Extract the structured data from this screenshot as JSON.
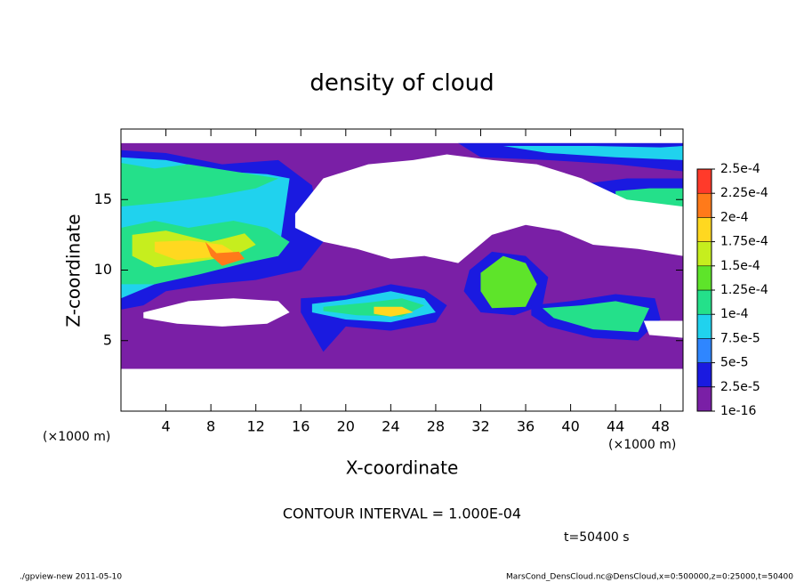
{
  "chart_data": {
    "type": "contour",
    "title": "density of cloud",
    "x_label": "X-coordinate",
    "y_label": "Z-coordinate",
    "x_unit": "(×1000 m)",
    "x_unit_right": "(×1000 m)",
    "subtitle": "CONTOUR INTERVAL = 1.000E-04",
    "time_label": "t=50400 s",
    "footer_left": "./gpview-new  2011-05-10",
    "footer_right": "MarsCond_DensCloud.nc@DensCloud,x=0:500000,z=0:25000,t=50400",
    "xlim": [
      0,
      50
    ],
    "ylim": [
      0,
      20
    ],
    "xticks": [
      4,
      8,
      12,
      16,
      20,
      24,
      28,
      32,
      36,
      40,
      44,
      48
    ],
    "yticks": [
      5,
      10,
      15
    ],
    "colorbar": {
      "levels": [
        {
          "value": 1e-16,
          "label": "1e-16"
        },
        {
          "value": 2.5e-05,
          "label": "2.5e-5"
        },
        {
          "value": 5e-05,
          "label": "5e-5"
        },
        {
          "value": 7.5e-05,
          "label": "7.5e-5"
        },
        {
          "value": 0.0001,
          "label": "1e-4"
        },
        {
          "value": 0.000125,
          "label": "1.25e-4"
        },
        {
          "value": 0.00015,
          "label": "1.5e-4"
        },
        {
          "value": 0.000175,
          "label": "1.75e-4"
        },
        {
          "value": 0.0002,
          "label": "2e-4"
        },
        {
          "value": 0.000225,
          "label": "2.25e-4"
        },
        {
          "value": 0.00025,
          "label": "2.5e-4"
        }
      ],
      "colors": [
        "#7a1fa6",
        "#1a1ae0",
        "#2f86ff",
        "#20d2ee",
        "#24e08a",
        "#5ee42a",
        "#c6ee1e",
        "#ffd820",
        "#ff7a1a",
        "#ff3a2a"
      ]
    },
    "holes": [
      {
        "x": [
          15.5,
          18,
          22,
          26,
          29,
          33,
          37,
          41,
          45,
          50,
          50,
          46,
          42,
          39,
          36,
          33,
          30,
          27,
          24,
          21,
          18,
          15.5
        ],
        "y": [
          14,
          16.5,
          17.5,
          17.8,
          18.2,
          17.8,
          17.5,
          16.5,
          15,
          14.5,
          11,
          11.5,
          11.8,
          12.8,
          13.2,
          12.5,
          10.5,
          11,
          10.8,
          11.5,
          12,
          13
        ]
      },
      {
        "x": [
          2,
          6,
          10,
          14,
          15,
          13,
          9,
          5,
          2
        ],
        "y": [
          7,
          7.8,
          8,
          7.8,
          7,
          6.2,
          6,
          6.2,
          6.6
        ]
      },
      {
        "x": [
          46.5,
          50,
          50,
          47
        ],
        "y": [
          6.4,
          6.4,
          5.2,
          5.4
        ]
      }
    ],
    "regions": [
      {
        "level": 1e-16,
        "x": [
          0,
          50,
          50,
          0
        ],
        "y": [
          3,
          3,
          19,
          19
        ]
      },
      {
        "level": 2.5e-05,
        "x": [
          0,
          4,
          9,
          14,
          17,
          18,
          16,
          12,
          8,
          4,
          2,
          0
        ],
        "y": [
          18.5,
          18.3,
          17.5,
          17.8,
          16,
          12,
          10,
          9.3,
          9,
          8.5,
          7.5,
          7.2
        ]
      },
      {
        "level": 7.5e-05,
        "x": [
          0,
          4,
          9,
          13,
          15,
          14,
          10,
          6,
          3,
          0
        ],
        "y": [
          18,
          17.8,
          17,
          16.8,
          16.5,
          11,
          10.5,
          9.8,
          9,
          8
        ]
      },
      {
        "level": 0.0001,
        "x": [
          0,
          3,
          6,
          10,
          14,
          12,
          8,
          4,
          0
        ],
        "y": [
          17.6,
          17.2,
          17.5,
          17,
          16.5,
          15.8,
          15.2,
          14.8,
          14.5
        ]
      },
      {
        "level": 0.0001,
        "x": [
          0,
          3,
          6,
          10,
          13,
          15,
          14,
          11,
          7,
          3,
          0
        ],
        "y": [
          13,
          13.5,
          13,
          13.5,
          13,
          12,
          11,
          10.5,
          9.7,
          9,
          9
        ]
      },
      {
        "level": 0.00015,
        "x": [
          1,
          4,
          8,
          11,
          12,
          10,
          6,
          3,
          1
        ],
        "y": [
          12.5,
          12.8,
          12,
          12.6,
          11.8,
          11,
          10.5,
          10.2,
          11
        ]
      },
      {
        "level": 0.000175,
        "x": [
          3,
          6,
          9,
          10,
          8,
          5,
          3
        ],
        "y": [
          12,
          12.1,
          11.8,
          11.3,
          10.9,
          10.7,
          11.3
        ]
      },
      {
        "level": 0.0002,
        "x": [
          7.5,
          8.5,
          10.5,
          11,
          9,
          8
        ],
        "y": [
          12,
          11.2,
          11.3,
          10.8,
          10.3,
          11
        ]
      },
      {
        "level": 2.5e-05,
        "x": [
          16,
          20,
          24,
          27,
          29,
          28,
          24,
          20,
          18,
          16
        ],
        "y": [
          8,
          8.2,
          9,
          8.6,
          7.5,
          6.3,
          5.7,
          6,
          4.2,
          7
        ]
      },
      {
        "level": 7.5e-05,
        "x": [
          17,
          20,
          24,
          27,
          28,
          24,
          20,
          17
        ],
        "y": [
          7.6,
          7.9,
          8.5,
          8,
          7,
          6.3,
          6.5,
          7
        ]
      },
      {
        "level": 0.0001,
        "x": [
          18,
          22,
          25,
          27,
          25,
          21,
          18
        ],
        "y": [
          7.4,
          7.7,
          8,
          7.5,
          6.7,
          6.8,
          7.1
        ]
      },
      {
        "level": 0.000175,
        "x": [
          22.5,
          25,
          26,
          24,
          22.5
        ],
        "y": [
          7.4,
          7.4,
          7,
          6.7,
          6.9
        ]
      },
      {
        "level": 2.5e-05,
        "x": [
          31,
          33,
          36,
          38,
          37.5,
          35,
          32,
          30.5
        ],
        "y": [
          10,
          11.3,
          11,
          9.5,
          7.5,
          6.8,
          7,
          8.5
        ]
      },
      {
        "level": 0.000125,
        "x": [
          32,
          34,
          36,
          37,
          36,
          33,
          32
        ],
        "y": [
          9.8,
          11,
          10.5,
          9,
          7.4,
          7.3,
          8.5
        ]
      },
      {
        "level": 2.5e-05,
        "x": [
          36.5,
          40,
          44,
          47.5,
          48,
          46,
          42,
          38,
          36.5
        ],
        "y": [
          7.5,
          7.8,
          8.3,
          8,
          6.5,
          5,
          5.2,
          6,
          6.8
        ]
      },
      {
        "level": 0.0001,
        "x": [
          37.5,
          41,
          44,
          47,
          46,
          42,
          38.5
        ],
        "y": [
          7.3,
          7.5,
          7.8,
          7.3,
          5.6,
          5.8,
          6.6
        ]
      },
      {
        "level": 2.5e-05,
        "x": [
          30,
          38,
          46,
          50,
          50,
          44,
          38,
          32
        ],
        "y": [
          19,
          19,
          19,
          19,
          17,
          17.5,
          17.8,
          18
        ]
      },
      {
        "level": 7.5e-05,
        "x": [
          34,
          42,
          48,
          50,
          50,
          44,
          38
        ],
        "y": [
          18.8,
          18.8,
          18.7,
          18.8,
          17.8,
          18,
          18.3
        ]
      },
      {
        "level": 2.5e-05,
        "x": [
          40,
          45,
          50,
          50,
          45,
          40
        ],
        "y": [
          16,
          16.5,
          16.5,
          13.8,
          14,
          15
        ]
      },
      {
        "level": 0.0001,
        "x": [
          44,
          47,
          50,
          50,
          47,
          44
        ],
        "y": [
          15.6,
          15.8,
          15.8,
          14.5,
          14.6,
          15
        ]
      }
    ]
  }
}
